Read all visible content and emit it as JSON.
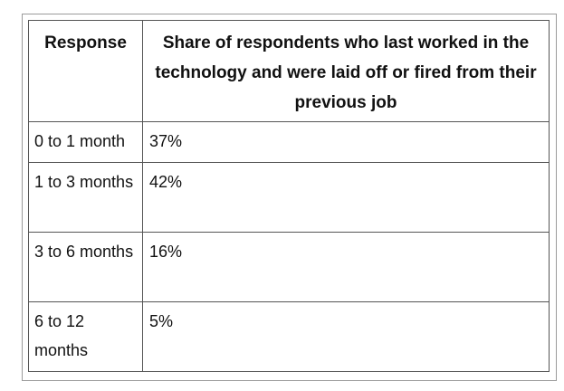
{
  "chart_data": {
    "type": "table",
    "columns": [
      "Response",
      "Share of respondents who last worked in the technology and were laid off or fired from their previous job"
    ],
    "rows": [
      [
        "0 to 1 month",
        "37%"
      ],
      [
        "1 to 3 months",
        "42%"
      ],
      [
        "3 to 6 months",
        "16%"
      ],
      [
        "6 to 12 months",
        "5%"
      ]
    ],
    "values": [
      37,
      42,
      16,
      5
    ],
    "unit": "%"
  }
}
